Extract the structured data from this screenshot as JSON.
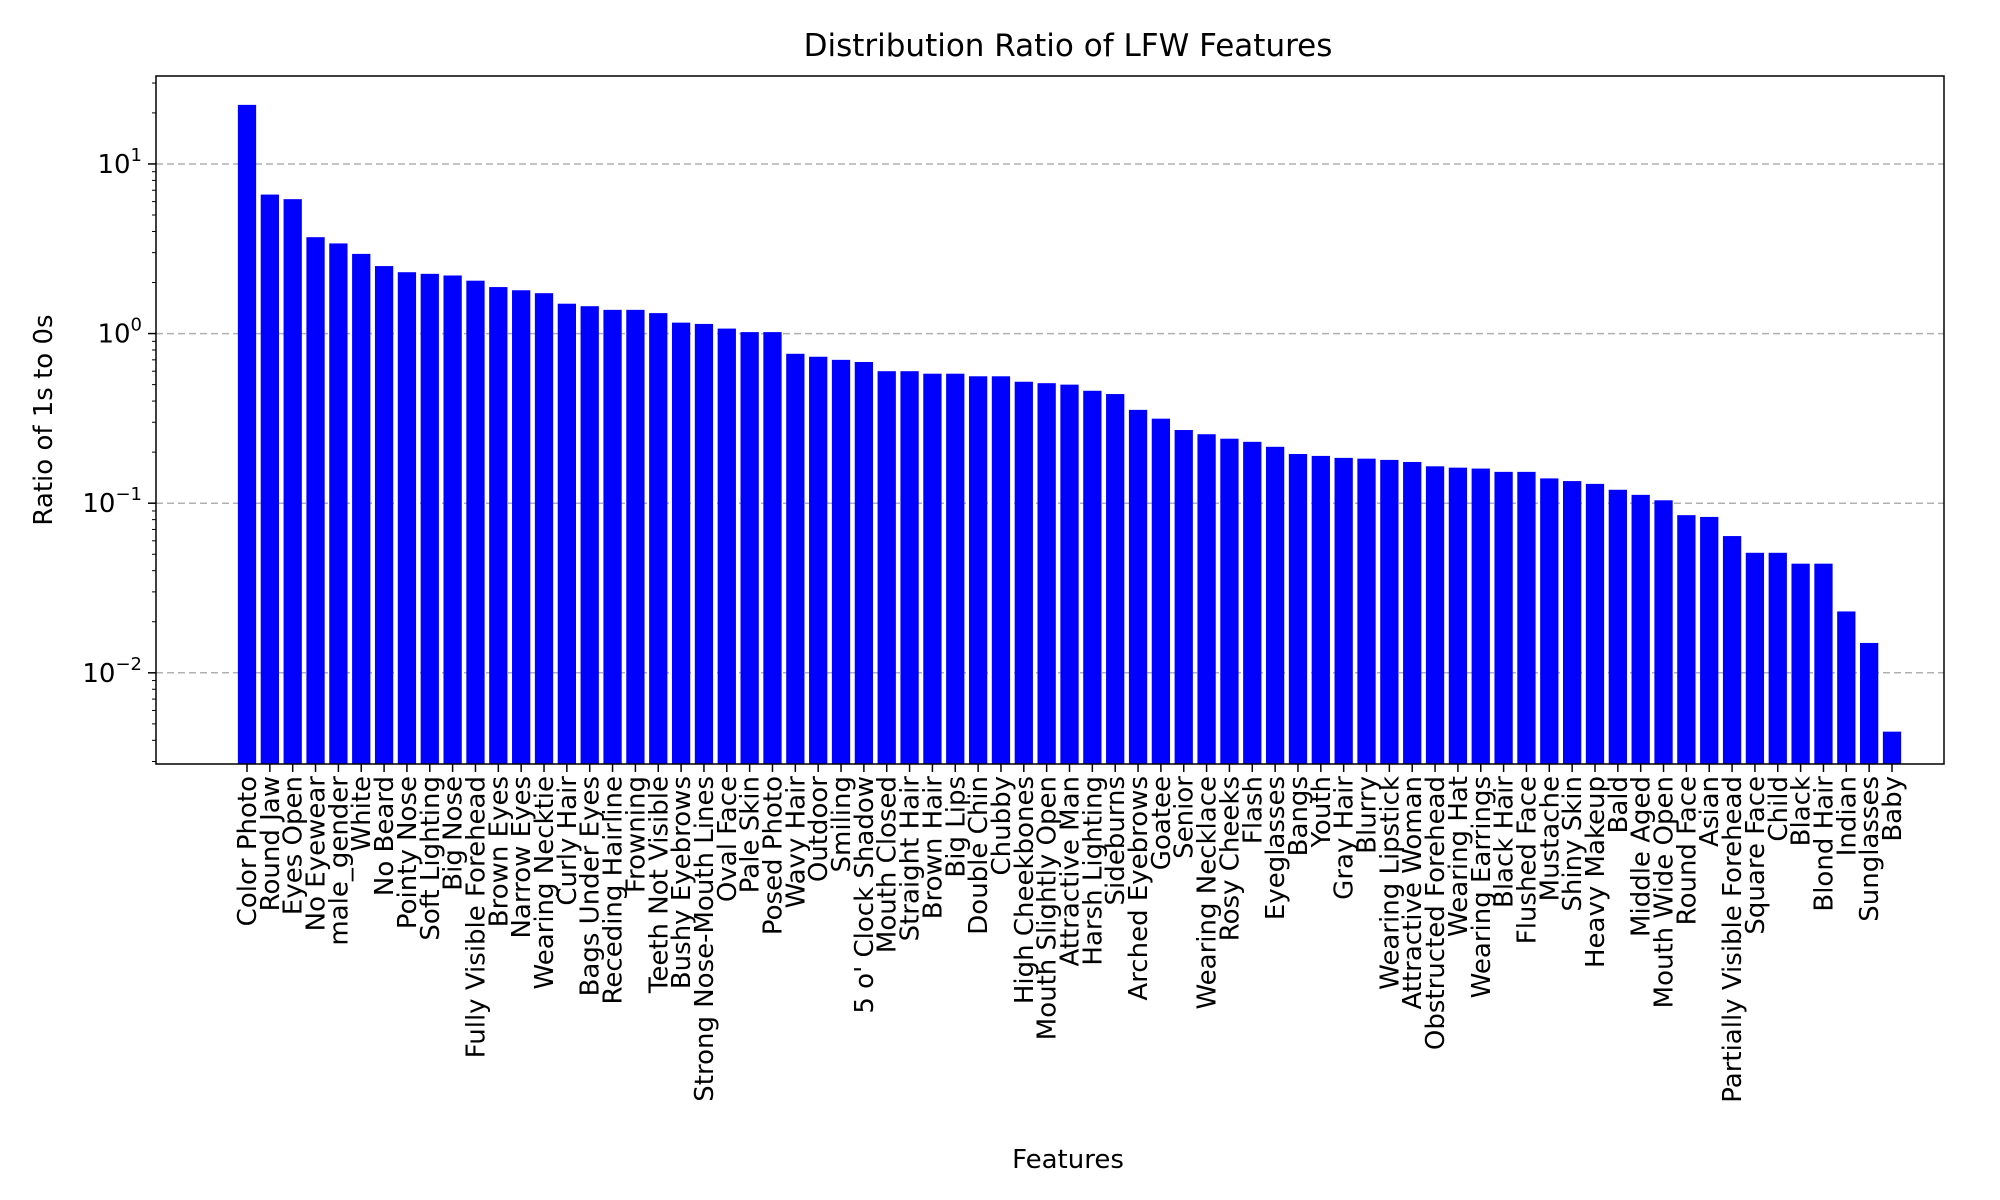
{
  "chart_data": {
    "type": "bar",
    "title": "Distribution Ratio of LFW Features",
    "xlabel": "Features",
    "ylabel": "Ratio of 1s to 0s",
    "yscale": "log",
    "ylim": [
      0.0029,
      33
    ],
    "grid": "y-major-dashed",
    "bar_color": "#0000ff",
    "yticks": [
      {
        "value": 0.01,
        "base": "10",
        "exp": "−2"
      },
      {
        "value": 0.1,
        "base": "10",
        "exp": "−1"
      },
      {
        "value": 1,
        "base": "10",
        "exp": "0"
      },
      {
        "value": 10,
        "base": "10",
        "exp": "1"
      }
    ],
    "categories": [
      "Color Photo",
      "Round Jaw",
      "Eyes Open",
      "No Eyewear",
      "male_gender",
      "White",
      "No Beard",
      "Pointy Nose",
      "Soft Lighting",
      "Big Nose",
      "Fully Visible Forehead",
      "Brown Eyes",
      "Narrow Eyes",
      "Wearing Necktie",
      "Curly Hair",
      "Bags Under Eyes",
      "Receding Hairline",
      "Frowning",
      "Teeth Not Visible",
      "Bushy Eyebrows",
      "Strong Nose-Mouth Lines",
      "Oval Face",
      "Pale Skin",
      "Posed Photo",
      "Wavy Hair",
      "Outdoor",
      "Smiling",
      "5 o' Clock Shadow",
      "Mouth Closed",
      "Straight Hair",
      "Brown Hair",
      "Big Lips",
      "Double Chin",
      "Chubby",
      "High Cheekbones",
      "Mouth Slightly Open",
      "Attractive Man",
      "Harsh Lighting",
      "Sideburns",
      "Arched Eyebrows",
      "Goatee",
      "Senior",
      "Wearing Necklace",
      "Rosy Cheeks",
      "Flash",
      "Eyeglasses",
      "Bangs",
      "Youth",
      "Gray Hair",
      "Blurry",
      "Wearing Lipstick",
      "Attractive Woman",
      "Obstructed Forehead",
      "Wearing Hat",
      "Wearing Earrings",
      "Black Hair",
      "Flushed Face",
      "Mustache",
      "Shiny Skin",
      "Heavy Makeup",
      "Bald",
      "Middle Aged",
      "Mouth Wide Open",
      "Round Face",
      "Asian",
      "Partially Visible Forehead",
      "Square Face",
      "Child",
      "Black",
      "Blond Hair",
      "Indian",
      "Sunglasses",
      "Baby"
    ],
    "values": [
      22.3,
      6.6,
      6.2,
      3.7,
      3.4,
      2.95,
      2.5,
      2.3,
      2.25,
      2.2,
      2.05,
      1.88,
      1.8,
      1.73,
      1.5,
      1.45,
      1.38,
      1.38,
      1.32,
      1.16,
      1.14,
      1.07,
      1.02,
      1.02,
      0.76,
      0.73,
      0.7,
      0.68,
      0.6,
      0.6,
      0.58,
      0.58,
      0.56,
      0.56,
      0.52,
      0.51,
      0.5,
      0.46,
      0.44,
      0.355,
      0.315,
      0.27,
      0.255,
      0.24,
      0.23,
      0.215,
      0.195,
      0.19,
      0.185,
      0.183,
      0.18,
      0.175,
      0.165,
      0.162,
      0.16,
      0.153,
      0.153,
      0.14,
      0.135,
      0.13,
      0.12,
      0.112,
      0.104,
      0.085,
      0.083,
      0.064,
      0.051,
      0.051,
      0.044,
      0.044,
      0.023,
      0.015,
      0.0045
    ]
  }
}
